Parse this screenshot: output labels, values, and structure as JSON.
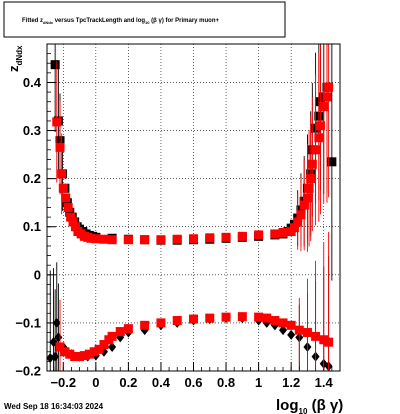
{
  "title_box": {
    "prefix": "Fitted",
    "z_main": "z",
    "z_sub": "dNdx",
    "middle": "versus TpcTrackLength and log",
    "log_sub": "10",
    "suffix": "(β γ) for Primary muon+"
  },
  "timestamp": "Wed Sep 18 16:34:03 2024",
  "axes": {
    "x_title_main": "log",
    "x_title_sub": "10",
    "x_title_suffix": "(β γ)",
    "y_title_main": "z",
    "y_title_sub": "dNdx"
  },
  "colors": {
    "series_black": "#000000",
    "series_red": "#ff0000",
    "grid": "#000000",
    "frame": "#000000"
  },
  "chart_data": {
    "type": "scatter",
    "title": "Fitted z_dNdx versus TpcTrackLength and log10(β γ) for Primary muon+",
    "xlabel": "log10(β γ)",
    "ylabel": "z_dNdx",
    "xlim": [
      -0.3,
      1.5
    ],
    "ylim": [
      -0.2,
      0.48
    ],
    "grid": true,
    "xticks": [
      -0.2,
      0,
      0.2,
      0.4,
      0.6,
      0.8,
      1,
      1.2,
      1.4
    ],
    "xtick_labels": [
      "−0.2",
      "0",
      "0.2",
      "0.4",
      "0.6",
      "0.8",
      "1",
      "1.2",
      "1.4"
    ],
    "yticks": [
      -0.2,
      -0.1,
      0,
      0.1,
      0.2,
      0.3,
      0.4
    ],
    "ytick_labels": [
      "−0.2",
      "−0.1",
      "0",
      "0.1",
      "0.2",
      "0.3",
      "0.4"
    ],
    "series": [
      {
        "color": "black",
        "marker": "square",
        "points": [
          [
            -0.25,
            0.437
          ],
          [
            -0.23,
            0.32
          ],
          [
            -0.22,
            0.279
          ],
          [
            -0.205,
            0.21
          ],
          [
            -0.19,
            0.18
          ],
          [
            -0.175,
            0.15
          ],
          [
            -0.16,
            0.13
          ],
          [
            -0.145,
            0.12
          ],
          [
            -0.13,
            0.11
          ],
          [
            -0.115,
            0.1
          ],
          [
            -0.1,
            0.095
          ],
          [
            -0.08,
            0.09
          ],
          [
            -0.06,
            0.085
          ],
          [
            -0.04,
            0.082
          ],
          [
            -0.02,
            0.08
          ],
          [
            0,
            0.078
          ],
          [
            0.1,
            0.076
          ],
          [
            0.2,
            0.074
          ],
          [
            0.3,
            0.073
          ],
          [
            0.4,
            0.072
          ],
          [
            0.5,
            0.072
          ],
          [
            0.6,
            0.073
          ],
          [
            0.7,
            0.074
          ],
          [
            0.8,
            0.076
          ],
          [
            0.9,
            0.078
          ],
          [
            1.0,
            0.08
          ],
          [
            1.1,
            0.083
          ],
          [
            1.15,
            0.085
          ],
          [
            1.18,
            0.09
          ],
          [
            1.2,
            0.097
          ],
          [
            1.22,
            0.105
          ],
          [
            1.24,
            0.118
          ],
          [
            1.26,
            0.135
          ],
          [
            1.28,
            0.153
          ],
          [
            1.3,
            0.18
          ],
          [
            1.32,
            0.21
          ],
          [
            1.33,
            0.26
          ],
          [
            1.35,
            0.305
          ],
          [
            1.37,
            0.33
          ],
          [
            1.38,
            0.36
          ],
          [
            1.4,
            0.37
          ],
          [
            1.42,
            0.39
          ],
          [
            1.45,
            0.235
          ]
        ]
      },
      {
        "color": "black",
        "marker": "diamond",
        "points": [
          [
            -0.28,
            -0.173
          ],
          [
            -0.26,
            -0.14
          ],
          [
            -0.25,
            -0.17
          ],
          [
            -0.24,
            -0.1
          ],
          [
            -0.23,
            -0.13
          ],
          [
            -0.2,
            -0.15
          ],
          [
            -0.15,
            -0.165
          ],
          [
            -0.1,
            -0.17
          ],
          [
            -0.05,
            -0.17
          ],
          [
            0,
            -0.168
          ],
          [
            0.05,
            -0.16
          ],
          [
            0.1,
            -0.15
          ],
          [
            0.15,
            -0.13
          ],
          [
            0.2,
            -0.12
          ],
          [
            0.3,
            -0.115
          ],
          [
            0.4,
            -0.105
          ],
          [
            0.5,
            -0.1
          ],
          [
            0.6,
            -0.095
          ],
          [
            0.7,
            -0.092
          ],
          [
            0.8,
            -0.09
          ],
          [
            0.9,
            -0.09
          ],
          [
            1.0,
            -0.095
          ],
          [
            1.05,
            -0.1
          ],
          [
            1.1,
            -0.105
          ],
          [
            1.15,
            -0.115
          ],
          [
            1.2,
            -0.125
          ],
          [
            1.25,
            -0.13
          ],
          [
            1.3,
            -0.15
          ],
          [
            1.35,
            -0.17
          ],
          [
            1.4,
            -0.185
          ],
          [
            1.43,
            -0.19
          ]
        ]
      },
      {
        "color": "red",
        "marker": "square",
        "points": [
          [
            -0.24,
            0.318
          ],
          [
            -0.22,
            0.265
          ],
          [
            -0.21,
            0.21
          ],
          [
            -0.2,
            0.18
          ],
          [
            -0.185,
            0.16
          ],
          [
            -0.17,
            0.14
          ],
          [
            -0.155,
            0.12
          ],
          [
            -0.14,
            0.11
          ],
          [
            -0.125,
            0.1
          ],
          [
            -0.11,
            0.09
          ],
          [
            -0.09,
            0.085
          ],
          [
            -0.07,
            0.08
          ],
          [
            -0.05,
            0.078
          ],
          [
            -0.03,
            0.076
          ],
          [
            0,
            0.075
          ],
          [
            0.05,
            0.074
          ],
          [
            0.1,
            0.073
          ],
          [
            0.2,
            0.073
          ],
          [
            0.3,
            0.073
          ],
          [
            0.4,
            0.073
          ],
          [
            0.5,
            0.074
          ],
          [
            0.6,
            0.075
          ],
          [
            0.7,
            0.077
          ],
          [
            0.8,
            0.078
          ],
          [
            0.9,
            0.08
          ],
          [
            1.0,
            0.083
          ],
          [
            1.1,
            0.085
          ],
          [
            1.15,
            0.088
          ],
          [
            1.2,
            0.09
          ],
          [
            1.22,
            0.098
          ],
          [
            1.24,
            0.11
          ],
          [
            1.26,
            0.125
          ],
          [
            1.28,
            0.145
          ],
          [
            1.3,
            0.16
          ],
          [
            1.31,
            0.18
          ],
          [
            1.32,
            0.2
          ],
          [
            1.33,
            0.23
          ],
          [
            1.35,
            0.26
          ],
          [
            1.37,
            0.285
          ],
          [
            1.38,
            0.31
          ],
          [
            1.4,
            0.35
          ],
          [
            1.42,
            0.37
          ],
          [
            1.43,
            0.39
          ]
        ]
      },
      {
        "color": "red",
        "marker": "square",
        "points": [
          [
            -0.22,
            -0.15
          ],
          [
            -0.19,
            -0.16
          ],
          [
            -0.16,
            -0.165
          ],
          [
            -0.13,
            -0.17
          ],
          [
            -0.1,
            -0.17
          ],
          [
            -0.07,
            -0.168
          ],
          [
            -0.04,
            -0.165
          ],
          [
            -0.01,
            -0.16
          ],
          [
            0.02,
            -0.155
          ],
          [
            0.05,
            -0.145
          ],
          [
            0.08,
            -0.135
          ],
          [
            0.1,
            -0.128
          ],
          [
            0.15,
            -0.118
          ],
          [
            0.2,
            -0.112
          ],
          [
            0.3,
            -0.105
          ],
          [
            0.4,
            -0.1
          ],
          [
            0.5,
            -0.095
          ],
          [
            0.6,
            -0.092
          ],
          [
            0.7,
            -0.09
          ],
          [
            0.8,
            -0.088
          ],
          [
            0.9,
            -0.087
          ],
          [
            1.0,
            -0.088
          ],
          [
            1.05,
            -0.09
          ],
          [
            1.1,
            -0.095
          ],
          [
            1.15,
            -0.1
          ],
          [
            1.2,
            -0.105
          ],
          [
            1.25,
            -0.115
          ],
          [
            1.3,
            -0.12
          ],
          [
            1.35,
            -0.128
          ],
          [
            1.4,
            -0.135
          ],
          [
            1.43,
            -0.14
          ]
        ]
      }
    ]
  }
}
